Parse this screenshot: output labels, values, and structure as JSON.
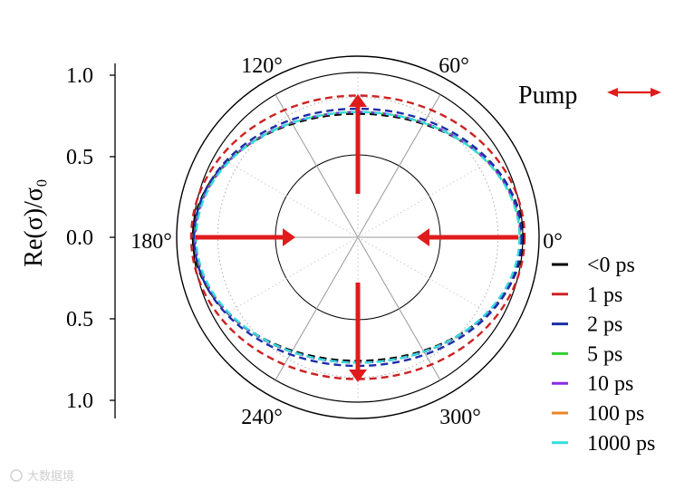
{
  "chart_data": {
    "type": "polar",
    "ylabel": "Re(σ)/σ₀",
    "radial_ticks": [
      "1.0",
      "0.5",
      "0.0",
      "0.5",
      "1.0"
    ],
    "radial_range": [
      0,
      1
    ],
    "angle_ticks": [
      "0°",
      "60°",
      "120°",
      "180°",
      "240°",
      "300°"
    ],
    "angle_tick_values": [
      0,
      60,
      120,
      180,
      240,
      300
    ],
    "grid": true,
    "legend_position": "right",
    "pump_label": "Pump",
    "pump_polarization_angle": 0,
    "series": [
      {
        "name": "<0 ps",
        "color": "#000000",
        "value_at_0deg": 1.0,
        "value_at_90deg": 0.75
      },
      {
        "name": "1 ps",
        "color": "#cc2222",
        "value_at_0deg": 1.0,
        "value_at_90deg": 0.86
      },
      {
        "name": "2 ps",
        "color": "#1a2ea8",
        "value_at_0deg": 1.0,
        "value_at_90deg": 0.78
      },
      {
        "name": "5 ps",
        "color": "#33cc33",
        "value_at_0deg": 1.0,
        "value_at_90deg": 0.76
      },
      {
        "name": "10 ps",
        "color": "#8a2be2",
        "value_at_0deg": 1.0,
        "value_at_90deg": 0.76
      },
      {
        "name": "100 ps",
        "color": "#e8862a",
        "value_at_0deg": 1.0,
        "value_at_90deg": 0.76
      },
      {
        "name": "1000 ps",
        "color": "#33dddd",
        "value_at_0deg": 1.0,
        "value_at_90deg": 0.76
      }
    ],
    "annotations": [
      "Pump"
    ]
  },
  "watermark": "大数据境",
  "colors": {
    "arrow": "#e01b1b",
    "axis": "#000000",
    "grid_dotted": "#aaaaaa",
    "spoke": "#999999"
  }
}
